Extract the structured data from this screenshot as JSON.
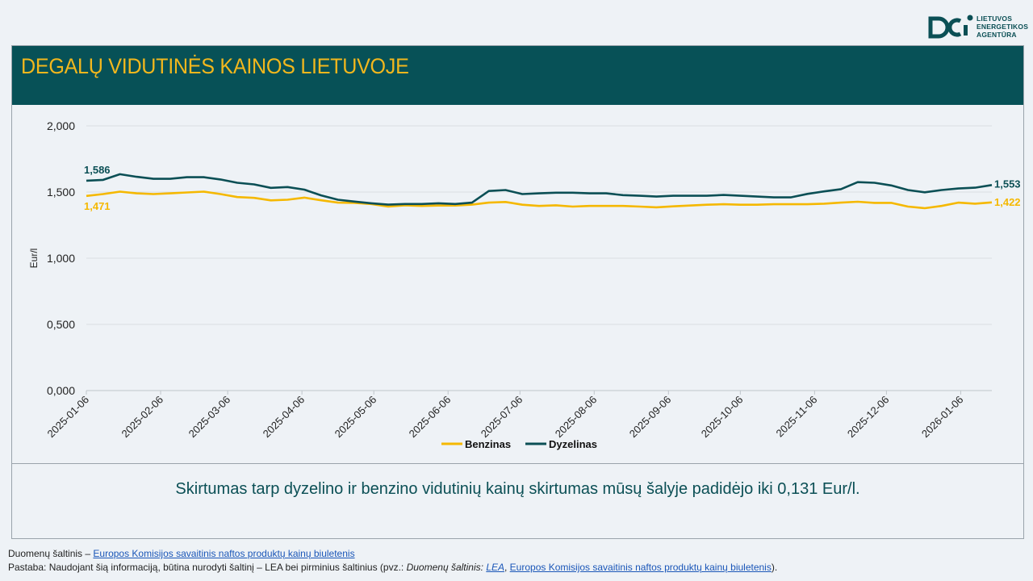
{
  "logo": {
    "lines": [
      "LIETUVOS",
      "ENERGETIKOS",
      "AGENTŪRA"
    ]
  },
  "header": {
    "title": "DEGALŲ VIDUTINĖS KAINOS LIETUVOJE"
  },
  "note": "Skirtumas tarp dyzelino ir benzino vidutinių kainų skirtumas mūsų šalyje padidėjo iki 0,131 Eur/l.",
  "footer": {
    "source_prefix": "Duomenų šaltinis – ",
    "source_link": "Europos Komisijos savaitinis naftos produktų kainų biuletenis",
    "remark_prefix": "Pastaba: Naudojant šią informaciją, būtina nurodyti šaltinį – LEA bei pirminius šaltinius (pvz.: ",
    "remark_italic": "Duomenų šaltinis: ",
    "remark_lea": "LEA",
    "remark_sep": ", ",
    "remark_link": "Europos Komisijos savaitinis naftos produktų kainų biuletenis",
    "remark_suffix": ")."
  },
  "colors": {
    "benzinas": "#f5b800",
    "dyzelinas": "#0b4f55",
    "header_bg": "#075157",
    "title": "#f2b71d"
  },
  "chart_data": {
    "type": "line",
    "ylabel": "Eur/l",
    "ylim": [
      0,
      2
    ],
    "yticks": [
      "0,000",
      "0,500",
      "1,000",
      "1,500",
      "2,000"
    ],
    "xticks": [
      "2025-01-06",
      "2025-02-06",
      "2025-03-06",
      "2025-04-06",
      "2025-05-06",
      "2025-06-06",
      "2025-07-06",
      "2025-08-06",
      "2025-09-06",
      "2025-10-06",
      "2025-11-06",
      "2025-12-06",
      "2026-01-06"
    ],
    "x": [
      "2025-01-06",
      "2025-01-13",
      "2025-01-20",
      "2025-01-27",
      "2025-02-03",
      "2025-02-10",
      "2025-02-17",
      "2025-02-24",
      "2025-03-03",
      "2025-03-10",
      "2025-03-17",
      "2025-03-24",
      "2025-03-31",
      "2025-04-07",
      "2025-04-14",
      "2025-04-21",
      "2025-04-28",
      "2025-05-05",
      "2025-05-12",
      "2025-05-19",
      "2025-05-26",
      "2025-06-02",
      "2025-06-09",
      "2025-06-16",
      "2025-06-23",
      "2025-06-30",
      "2025-07-07",
      "2025-07-14",
      "2025-07-21",
      "2025-07-28",
      "2025-08-04",
      "2025-08-11",
      "2025-08-18",
      "2025-08-25",
      "2025-09-01",
      "2025-09-08",
      "2025-09-15",
      "2025-09-22",
      "2025-09-29",
      "2025-10-06",
      "2025-10-13",
      "2025-10-20",
      "2025-10-27",
      "2025-11-03",
      "2025-11-10",
      "2025-11-17",
      "2025-11-24",
      "2025-12-01",
      "2025-12-08",
      "2025-12-15",
      "2025-12-22",
      "2025-12-29",
      "2026-01-05",
      "2026-01-12",
      "2026-01-19"
    ],
    "series": [
      {
        "name": "Benzinas",
        "values": [
          1.471,
          1.485,
          1.503,
          1.49,
          1.485,
          1.49,
          1.497,
          1.503,
          1.485,
          1.462,
          1.456,
          1.437,
          1.442,
          1.458,
          1.438,
          1.42,
          1.418,
          1.41,
          1.39,
          1.4,
          1.395,
          1.398,
          1.398,
          1.405,
          1.42,
          1.425,
          1.404,
          1.395,
          1.4,
          1.39,
          1.395,
          1.395,
          1.395,
          1.39,
          1.385,
          1.392,
          1.398,
          1.404,
          1.408,
          1.404,
          1.404,
          1.408,
          1.408,
          1.408,
          1.412,
          1.42,
          1.427,
          1.418,
          1.418,
          1.39,
          1.378,
          1.395,
          1.42,
          1.412,
          1.422
        ]
      },
      {
        "name": "Dyzelinas",
        "values": [
          1.586,
          1.592,
          1.635,
          1.615,
          1.6,
          1.6,
          1.612,
          1.612,
          1.595,
          1.57,
          1.558,
          1.532,
          1.538,
          1.518,
          1.475,
          1.442,
          1.428,
          1.415,
          1.405,
          1.41,
          1.41,
          1.415,
          1.41,
          1.42,
          1.508,
          1.515,
          1.485,
          1.49,
          1.495,
          1.495,
          1.49,
          1.49,
          1.477,
          1.472,
          1.466,
          1.472,
          1.472,
          1.472,
          1.478,
          1.472,
          1.466,
          1.46,
          1.46,
          1.486,
          1.505,
          1.522,
          1.575,
          1.57,
          1.55,
          1.515,
          1.498,
          1.515,
          1.527,
          1.533,
          1.553
        ]
      }
    ],
    "annotations": [
      {
        "series": "Dyzelinas",
        "position": "start",
        "text": "1,586"
      },
      {
        "series": "Benzinas",
        "position": "start",
        "text": "1,471"
      },
      {
        "series": "Dyzelinas",
        "position": "end",
        "text": "1,553"
      },
      {
        "series": "Benzinas",
        "position": "end",
        "text": "1,422"
      }
    ],
    "legend": {
      "placement": "bottom",
      "items": [
        "Benzinas",
        "Dyzelinas"
      ]
    },
    "grid": true
  }
}
